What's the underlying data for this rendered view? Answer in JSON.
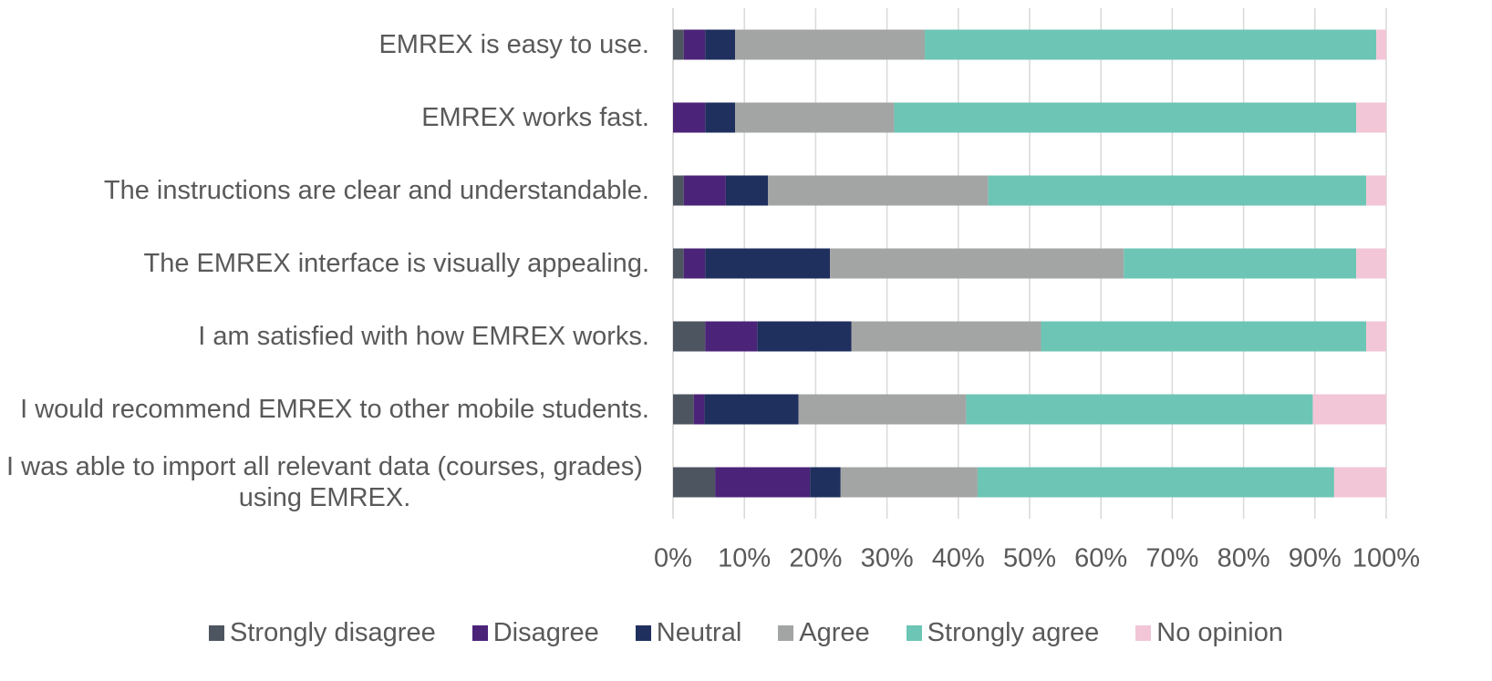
{
  "chart_data": {
    "type": "stacked-bar-horizontal",
    "categories": [
      "EMREX is easy to use.",
      "EMREX works fast.",
      "The instructions are clear and understandable.",
      "The EMREX interface is visually appealing.",
      "I am satisfied with how EMREX works.",
      "I would recommend EMREX to other mobile students.",
      "I was able to import all relevant data (courses, grades) using EMREX."
    ],
    "series": [
      {
        "name": "Strongly disagree",
        "color": "#4d5560",
        "values": [
          1.5,
          0,
          1.5,
          1.5,
          4.5,
          2.9,
          5.9
        ]
      },
      {
        "name": "Disagree",
        "color": "#4b2378",
        "values": [
          3,
          4.5,
          5.9,
          3,
          7.3,
          1.5,
          13.3
        ]
      },
      {
        "name": "Neutral",
        "color": "#1f2f5e",
        "values": [
          4.2,
          4.2,
          5.9,
          17.5,
          13.2,
          13.2,
          4.3
        ]
      },
      {
        "name": "Agree",
        "color": "#a3a5a4",
        "values": [
          26.6,
          22.3,
          30.9,
          41.2,
          26.6,
          23.5,
          19.2
        ]
      },
      {
        "name": "Strongly agree",
        "color": "#6cc5b5",
        "values": [
          63.3,
          64.8,
          53.0,
          32.6,
          45.6,
          48.6,
          50
        ]
      },
      {
        "name": "No opinion",
        "color": "#f2c6d6",
        "values": [
          1.4,
          4.2,
          2.8,
          4.2,
          2.8,
          10.3,
          7.3
        ]
      }
    ],
    "xlim": [
      0,
      100
    ],
    "xticks": [
      {
        "value": 0,
        "label": "0%"
      },
      {
        "value": 10,
        "label": "10%"
      },
      {
        "value": 20,
        "label": "20%"
      },
      {
        "value": 30,
        "label": "30%"
      },
      {
        "value": 40,
        "label": "40%"
      },
      {
        "value": 50,
        "label": "50%"
      },
      {
        "value": 60,
        "label": "60%"
      },
      {
        "value": 70,
        "label": "70%"
      },
      {
        "value": 80,
        "label": "80%"
      },
      {
        "value": 90,
        "label": "90%"
      },
      {
        "value": 100,
        "label": "100%"
      }
    ],
    "grid": true,
    "legend": "bottom"
  }
}
